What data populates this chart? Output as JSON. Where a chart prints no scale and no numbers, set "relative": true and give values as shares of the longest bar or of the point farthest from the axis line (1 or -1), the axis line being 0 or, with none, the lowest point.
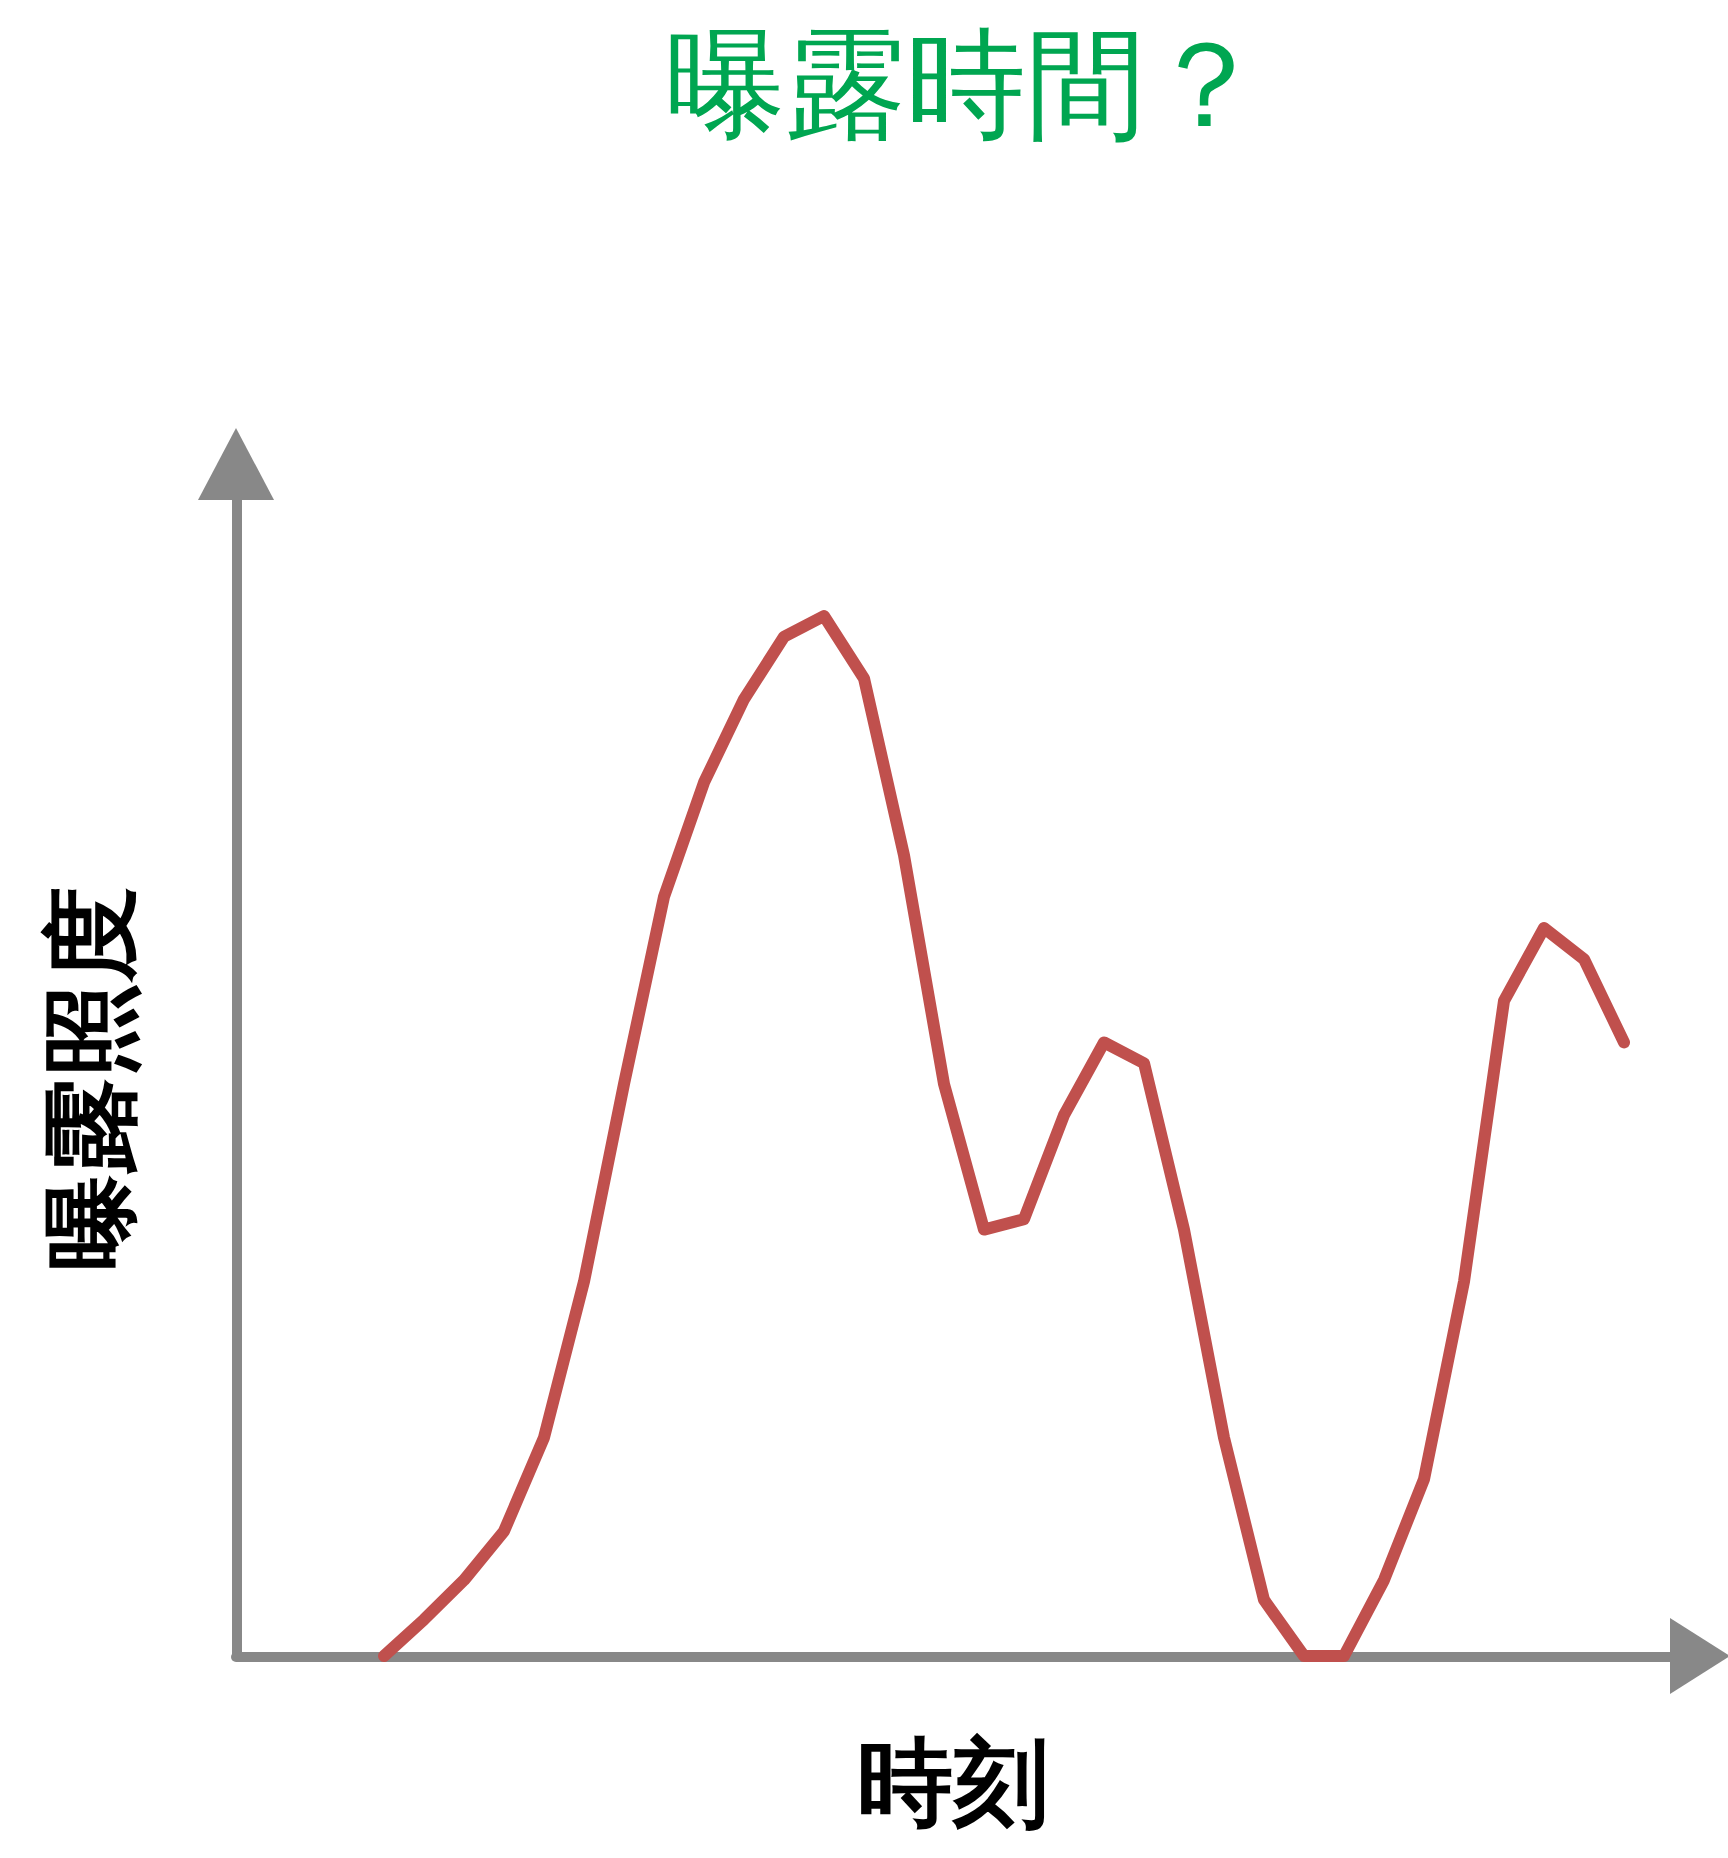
{
  "chart_data": {
    "type": "line",
    "title": "曝露時間？",
    "xlabel": "時刻",
    "ylabel": "曝露照度",
    "relative": true,
    "marker": "none",
    "line_style": "solid",
    "categories": [
      null,
      null,
      null,
      null,
      null,
      null,
      null,
      null,
      null,
      null,
      null,
      null,
      null,
      null,
      null,
      null,
      null,
      null,
      null,
      null,
      null,
      null,
      null,
      null,
      null,
      null,
      null,
      null,
      null,
      null,
      null,
      null
    ],
    "series": [
      {
        "color": "#c0504d",
        "values": [
          0,
          0.035,
          0.073,
          0.12,
          0.21,
          0.36,
          0.55,
          0.73,
          0.84,
          0.92,
          0.98,
          1,
          0.94,
          0.77,
          0.55,
          0.41,
          0.42,
          0.52,
          0.59,
          0.57,
          0.41,
          0.21,
          0.054,
          0,
          0,
          0.073,
          0.17,
          0.36,
          0.63,
          0.7,
          0.67,
          0.59
        ]
      }
    ]
  }
}
